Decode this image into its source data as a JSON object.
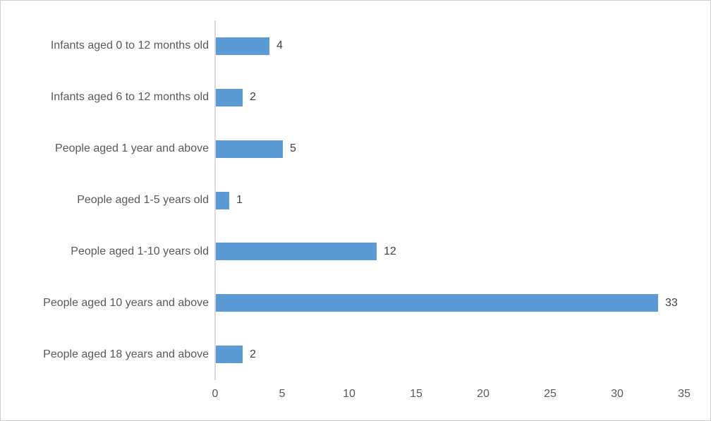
{
  "chart_data": {
    "type": "bar",
    "orientation": "horizontal",
    "title": "",
    "xlabel": "",
    "ylabel": "",
    "categories": [
      "Infants aged 0 to 12 months old",
      "Infants aged 6 to 12 months old",
      "People aged 1 year and above",
      "People aged 1-5 years old",
      "People aged 1-10 years old",
      "People aged 10 years and above",
      "People aged 18 years and above"
    ],
    "values": [
      4,
      2,
      5,
      1,
      12,
      33,
      2
    ],
    "data_labels": [
      "4",
      "2",
      "5",
      "1",
      "12",
      "33",
      "2"
    ],
    "xlim": [
      0,
      35
    ],
    "xticks": [
      0,
      5,
      10,
      15,
      20,
      25,
      30,
      35
    ],
    "grid": false,
    "legend": "none",
    "bar_color": "#5b9bd5",
    "axis_line_color": "#d9d9d9",
    "category_label_color": "#595959",
    "value_label_color": "#404040",
    "tick_label_color": "#595959"
  }
}
